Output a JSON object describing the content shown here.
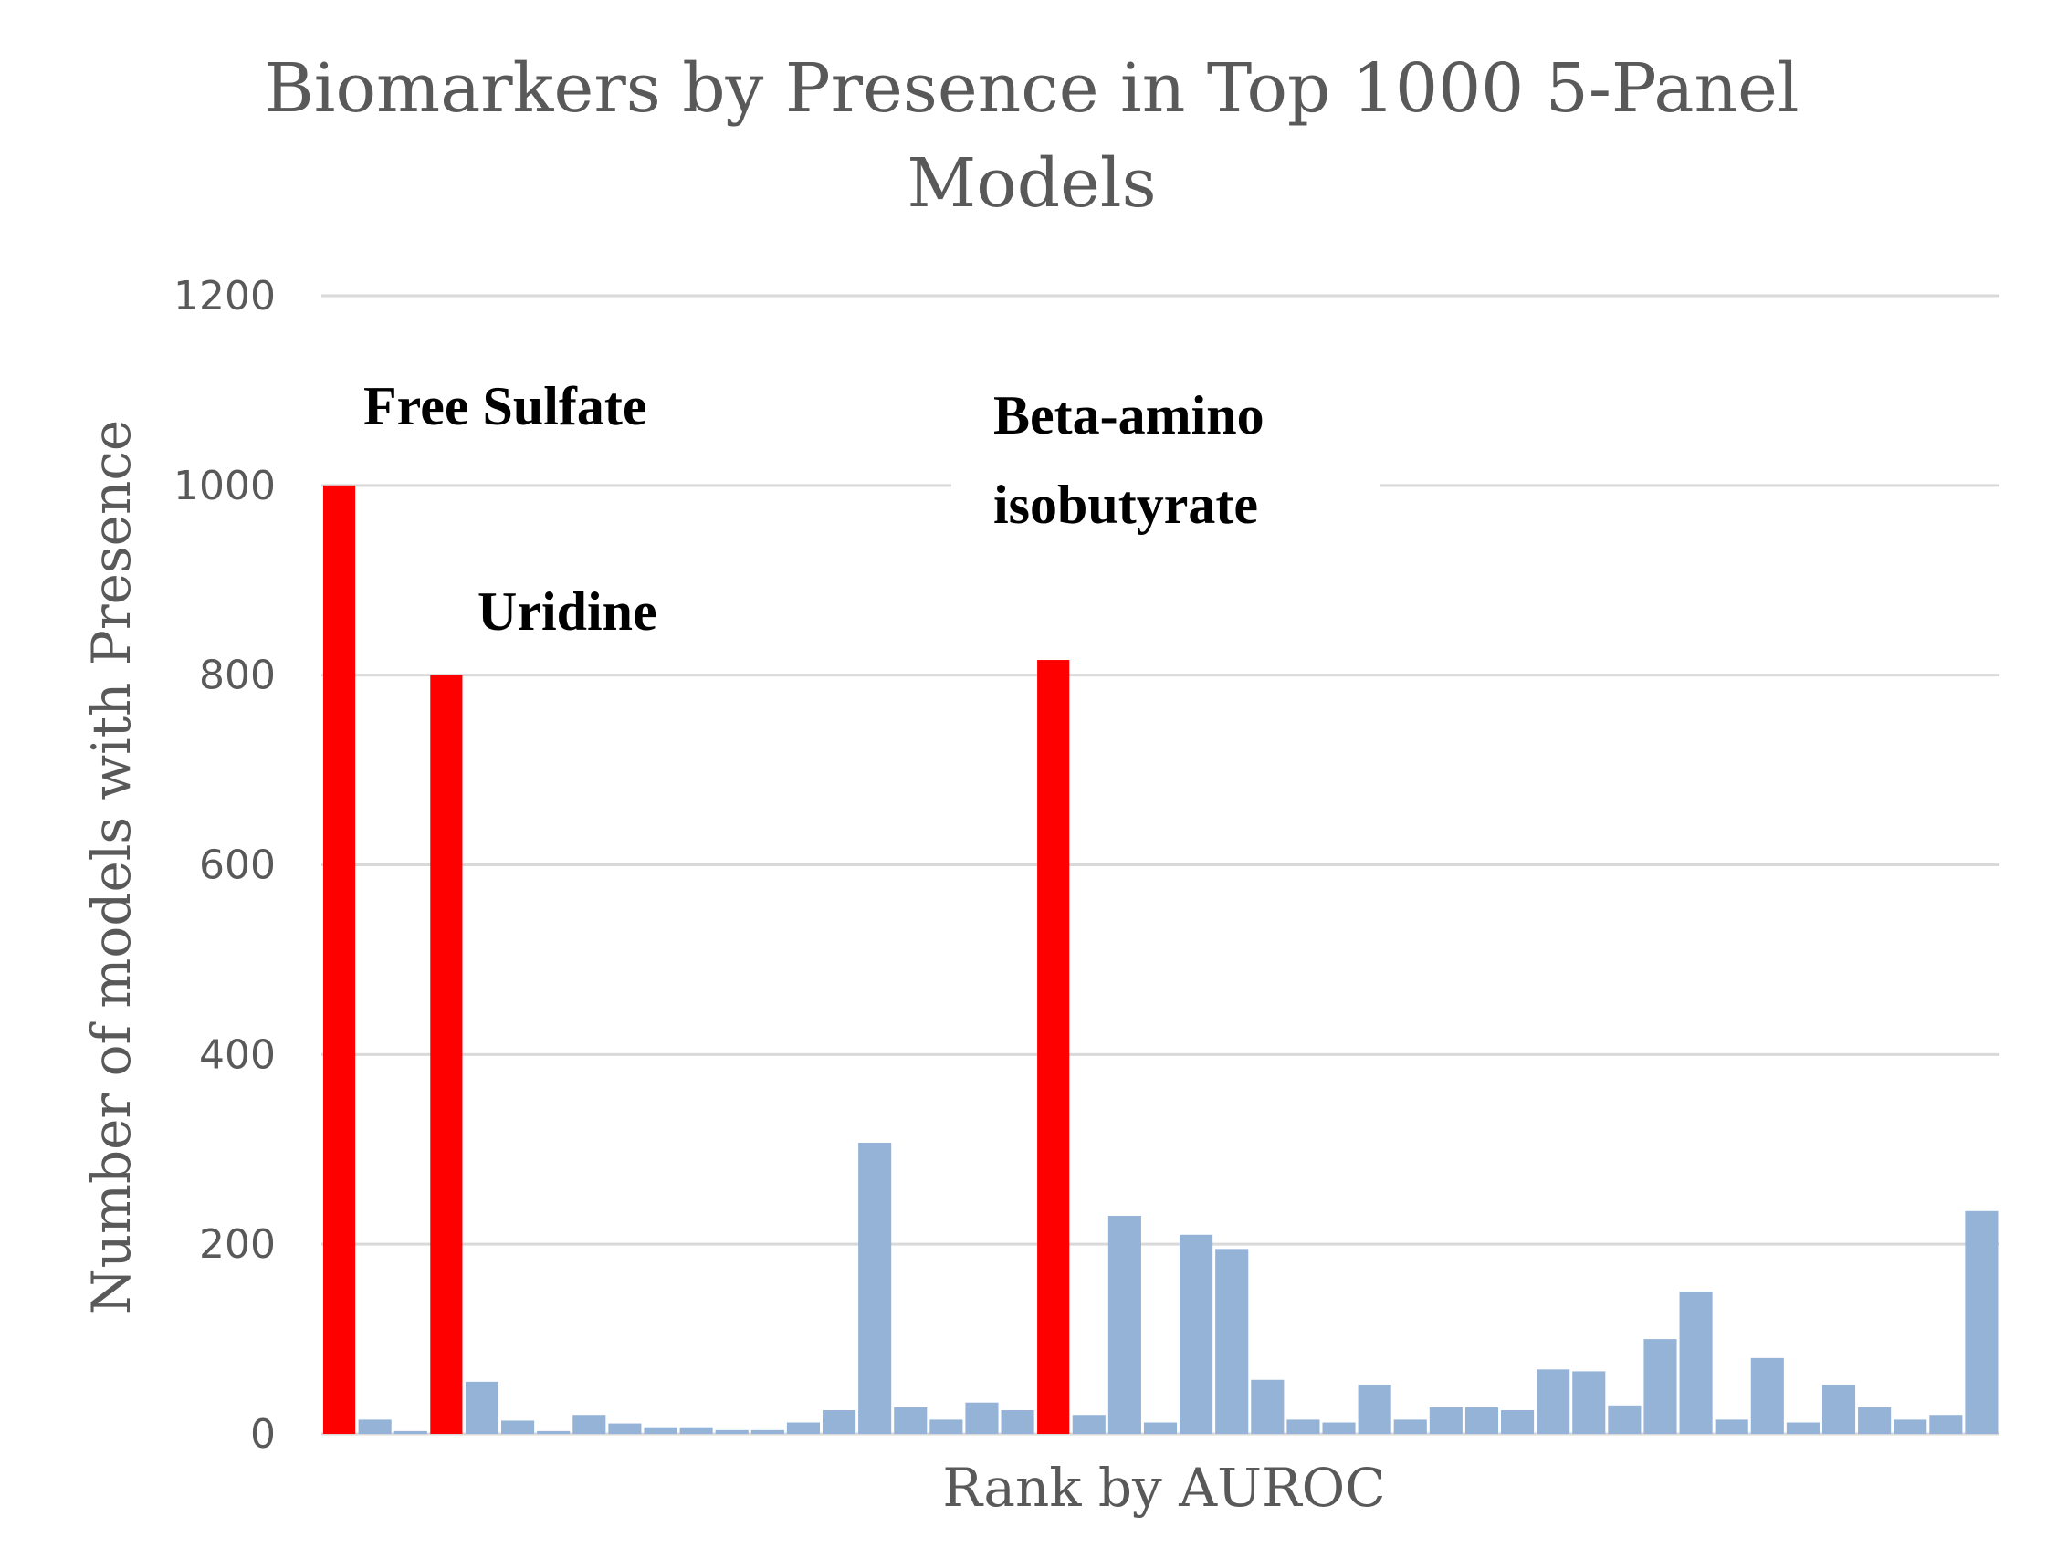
{
  "chart_data": {
    "type": "bar",
    "title_line1": "Biomarkers by Presence in Top 1000 5-Panel",
    "title_line2": "Models",
    "xlabel": "Rank by AUROC",
    "ylabel": "Number of models with Presence",
    "ylim": [
      0,
      1200
    ],
    "yticks": [
      "0",
      "200",
      "400",
      "600",
      "800",
      "1000",
      "1200"
    ],
    "grid": true,
    "colors": {
      "highlight": "#ff0000",
      "default": "#95b3d7",
      "grid": "#d9d9d9",
      "text": "#595959"
    },
    "values": [
      1000,
      15,
      3,
      800,
      55,
      14,
      3,
      20,
      11,
      7,
      7,
      4,
      4,
      12,
      25,
      307,
      28,
      15,
      33,
      25,
      816,
      20,
      230,
      12,
      210,
      195,
      57,
      15,
      12,
      52,
      15,
      28,
      28,
      25,
      68,
      66,
      30,
      100,
      150,
      15,
      80,
      12,
      52,
      28,
      15,
      20,
      235
    ],
    "highlighted": [
      0,
      3,
      20
    ],
    "annotations": [
      {
        "lines": [
          "Free Sulfate"
        ],
        "bar_index": 0
      },
      {
        "lines": [
          "Uridine"
        ],
        "bar_index": 3
      },
      {
        "lines": [
          "Beta-amino",
          "isobutyrate"
        ],
        "bar_index": 20
      }
    ]
  }
}
